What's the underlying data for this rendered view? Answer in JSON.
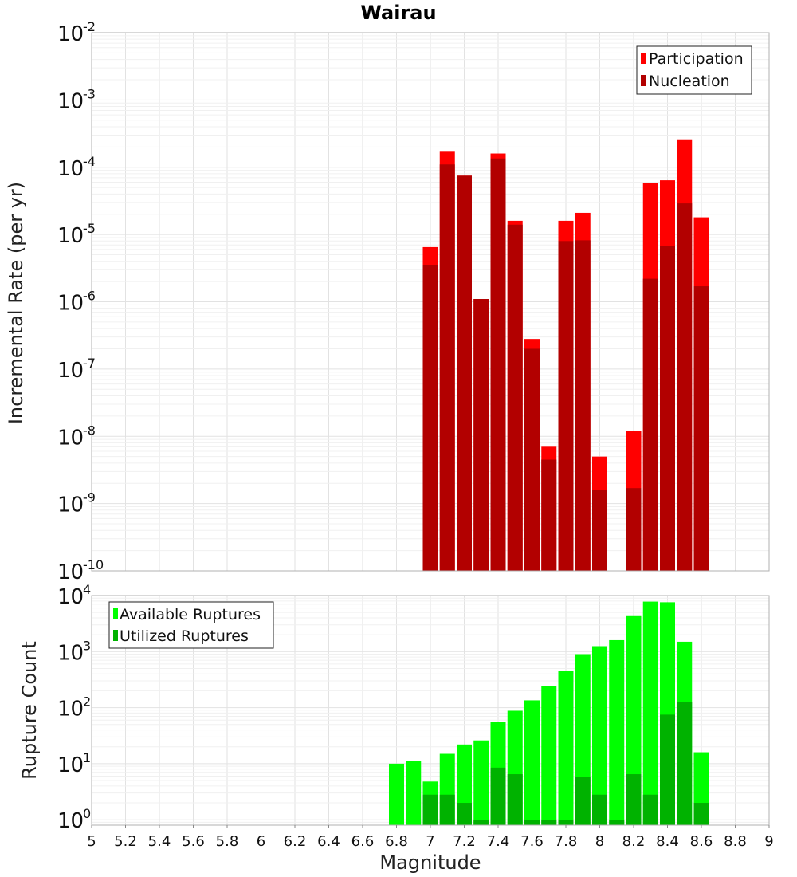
{
  "title": "Wairau",
  "colors": {
    "participation": "#ff0000",
    "nucleation": "#b20000",
    "available": "#00ff00",
    "utilized": "#00b200"
  },
  "chart_data": [
    {
      "type": "bar",
      "panel": "top",
      "ylabel": "Incremental Rate (per yr)",
      "yscale": "log",
      "ylim": [
        1e-10,
        0.01
      ],
      "xlim": [
        5,
        9
      ],
      "grid": true,
      "legend": "top-right",
      "x": [
        7.0,
        7.1,
        7.2,
        7.3,
        7.4,
        7.5,
        7.6,
        7.7,
        7.8,
        7.9,
        8.0,
        8.2,
        8.3,
        8.4,
        8.5,
        8.6
      ],
      "series": [
        {
          "name": "Participation",
          "color": "#ff0000",
          "values": [
            6.5e-06,
            0.00017,
            7.5e-05,
            1.1e-06,
            0.00016,
            1.6e-05,
            2.8e-07,
            7e-09,
            1.6e-05,
            2.1e-05,
            5e-09,
            1.2e-08,
            5.8e-05,
            6.4e-05,
            0.00026,
            1.8e-05
          ]
        },
        {
          "name": "Nucleation",
          "color": "#b20000",
          "values": [
            3.5e-06,
            0.00011,
            7.5e-05,
            1.1e-06,
            0.000135,
            1.4e-05,
            2e-07,
            4.5e-09,
            8e-06,
            8.2e-06,
            1.6e-09,
            1.7e-09,
            2.2e-06,
            6.8e-06,
            2.9e-05,
            1.7e-06
          ]
        }
      ]
    },
    {
      "type": "bar",
      "panel": "bottom",
      "xlabel": "Magnitude",
      "ylabel": "Rupture Count",
      "yscale": "log",
      "ylim": [
        0.8,
        10000
      ],
      "xlim": [
        5,
        9
      ],
      "grid": true,
      "legend": "top-left",
      "x": [
        6.8,
        6.9,
        7.0,
        7.1,
        7.2,
        7.3,
        7.4,
        7.5,
        7.6,
        7.7,
        7.8,
        7.9,
        8.0,
        8.1,
        8.2,
        8.3,
        8.4,
        8.5,
        8.6
      ],
      "series": [
        {
          "name": "Available Ruptures",
          "color": "#00ff00",
          "values": [
            10,
            11,
            4.8,
            15,
            22,
            26,
            55,
            88,
            135,
            245,
            460,
            900,
            1250,
            1600,
            4300,
            7800,
            7600,
            1500,
            16
          ]
        },
        {
          "name": "Utilized Ruptures",
          "color": "#00b200",
          "values": [
            0,
            0,
            2.8,
            2.8,
            2,
            1,
            8.5,
            6.5,
            1,
            1,
            1,
            5.8,
            2.8,
            1,
            6.5,
            2.8,
            75,
            125,
            2
          ]
        }
      ]
    }
  ],
  "x_ticks": [
    "5",
    "5.2",
    "5.4",
    "5.6",
    "5.8",
    "6",
    "6.2",
    "6.4",
    "6.6",
    "6.8",
    "7",
    "7.2",
    "7.4",
    "7.6",
    "7.8",
    "8",
    "8.2",
    "8.4",
    "8.6",
    "8.8",
    "9"
  ],
  "top_y_ticks": [
    {
      "base": "10",
      "exp": "-2"
    },
    {
      "base": "10",
      "exp": "-3"
    },
    {
      "base": "10",
      "exp": "-4"
    },
    {
      "base": "10",
      "exp": "-5"
    },
    {
      "base": "10",
      "exp": "-6"
    },
    {
      "base": "10",
      "exp": "-7"
    },
    {
      "base": "10",
      "exp": "-8"
    },
    {
      "base": "10",
      "exp": "-9"
    },
    {
      "base": "10",
      "exp": "-10"
    }
  ],
  "bottom_y_ticks": [
    {
      "base": "10",
      "exp": "4"
    },
    {
      "base": "10",
      "exp": "3"
    },
    {
      "base": "10",
      "exp": "2"
    },
    {
      "base": "10",
      "exp": "1"
    },
    {
      "base": "10",
      "exp": "0"
    }
  ]
}
